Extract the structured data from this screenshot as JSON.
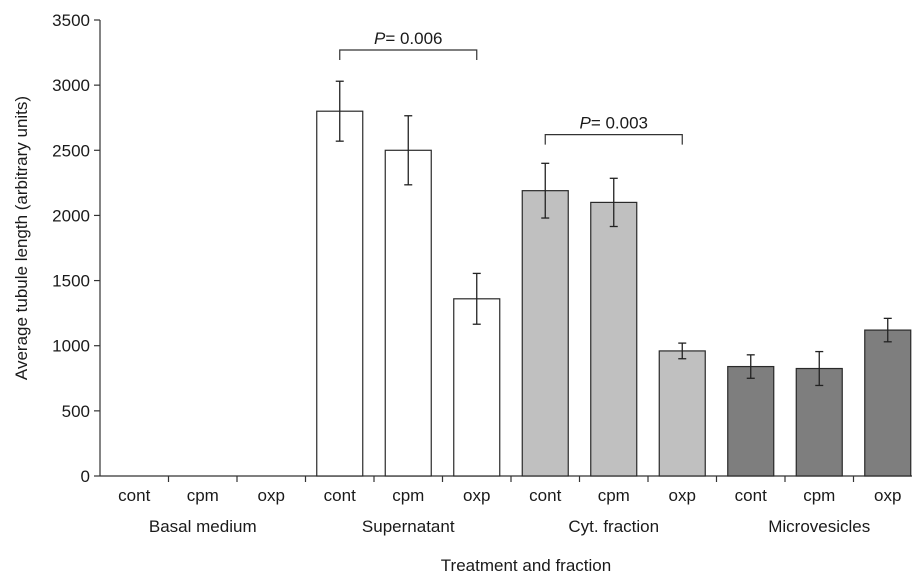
{
  "chart_data": {
    "type": "bar",
    "xlabel": "Treatment and fraction",
    "ylabel": "Average tubule length (arbitrary units)",
    "ylim": [
      0,
      3500
    ],
    "yticks": [
      0,
      500,
      1000,
      1500,
      2000,
      2500,
      3000,
      3500
    ],
    "grid": false,
    "groups": [
      {
        "name": "Basal medium",
        "fill": "#ffffff",
        "categories": [
          "cont",
          "cpm",
          "oxp"
        ],
        "values": [
          0,
          0,
          0
        ],
        "errors": [
          0,
          0,
          0
        ]
      },
      {
        "name": "Supernatant",
        "fill": "#ffffff",
        "categories": [
          "cont",
          "cpm",
          "oxp"
        ],
        "values": [
          2800,
          2500,
          1360
        ],
        "errors": [
          230,
          265,
          195
        ]
      },
      {
        "name": "Cyt. fraction",
        "fill": "#c0c0c0",
        "categories": [
          "cont",
          "cpm",
          "oxp"
        ],
        "values": [
          2190,
          2100,
          960
        ],
        "errors": [
          210,
          185,
          60
        ]
      },
      {
        "name": "Microvesicles",
        "fill": "#7e7e7e",
        "categories": [
          "cont",
          "cpm",
          "oxp"
        ],
        "values": [
          840,
          825,
          1120
        ],
        "errors": [
          90,
          130,
          90
        ]
      }
    ],
    "annotations": [
      {
        "label_prefix": "P",
        "label_value": "= 0.006",
        "from_bar": 3,
        "to_bar": 5,
        "y": 3270
      },
      {
        "label_prefix": "P",
        "label_value": "= 0.003",
        "from_bar": 6,
        "to_bar": 8,
        "y": 2620
      }
    ]
  }
}
